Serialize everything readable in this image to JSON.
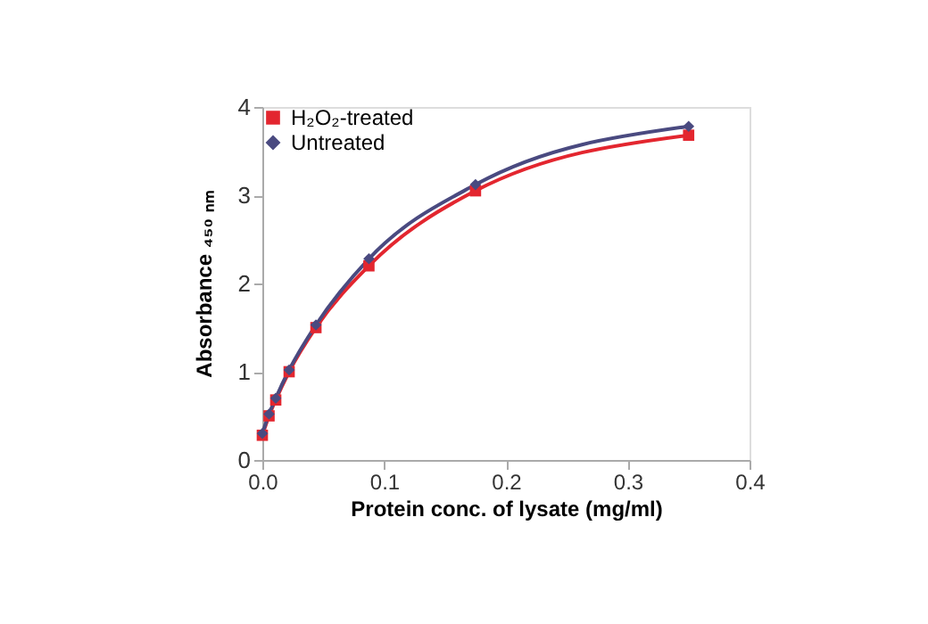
{
  "chart_data": {
    "type": "line",
    "xlabel": "Protein conc. of lysate (mg/ml)",
    "ylabel": "Absorbance ₄₅₀ ₙₘ",
    "x": [
      0,
      0.0055,
      0.011,
      0.022,
      0.044,
      0.0875,
      0.175,
      0.35
    ],
    "series": [
      {
        "name": "H₂O₂-treated",
        "color": "#e3262f",
        "marker": "square",
        "values": [
          0.28,
          0.5,
          0.68,
          1.0,
          1.5,
          2.2,
          3.05,
          3.68
        ]
      },
      {
        "name": "Untreated",
        "color": "#4a4a80",
        "marker": "diamond",
        "values": [
          0.3,
          0.52,
          0.7,
          1.02,
          1.53,
          2.28,
          3.12,
          3.78
        ]
      }
    ],
    "xlim": [
      0,
      0.4
    ],
    "xticks": [
      {
        "value": 0,
        "label": "0.0"
      },
      0.1,
      0.2,
      0.3,
      0.4
    ],
    "ylim": [
      0,
      4
    ],
    "yticks": [
      0,
      1,
      2,
      3,
      4
    ],
    "grid": false,
    "legend": "top left",
    "line_style": "solid"
  }
}
